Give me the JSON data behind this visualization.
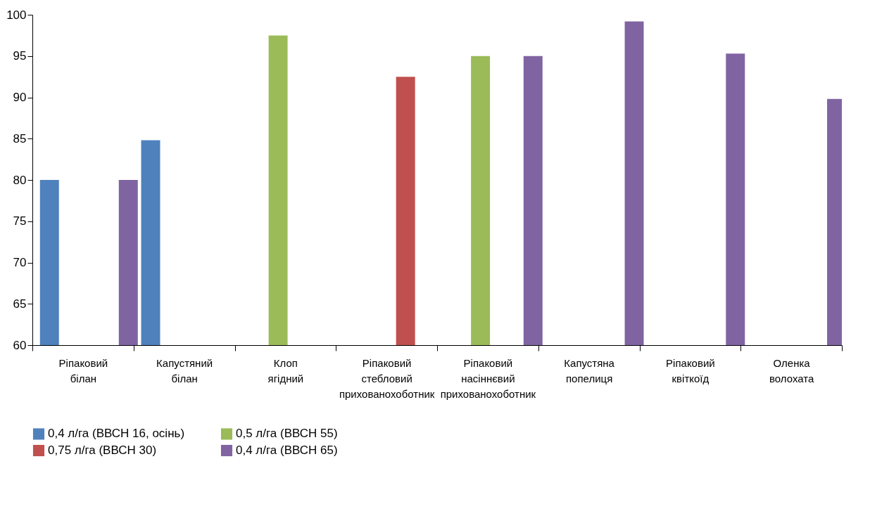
{
  "chart_data": {
    "type": "bar",
    "categories": [
      "Ріпаковий білан",
      "Капустяний білан",
      "Клоп ягідний",
      "Ріпаковий стебловий прихованохоботник",
      "Ріпаковий насіннєвий прихованохоботник",
      "Капустяна попелиця",
      "Ріпаковий квіткоїд",
      "Оленка волохата"
    ],
    "series": [
      {
        "name": "0,4 л/га (ВВСН 16, осінь)",
        "color": "#4f81bd",
        "values": [
          80,
          84.8,
          null,
          null,
          null,
          null,
          null,
          null
        ]
      },
      {
        "name": "0,5 л/га (ВВСН 55)",
        "color": "#9bbb59",
        "values": [
          null,
          null,
          97.5,
          null,
          95,
          null,
          null,
          null
        ]
      },
      {
        "name": "0,75 л/га (ВВСН 30)",
        "color": "#c0504d",
        "values": [
          null,
          null,
          null,
          92.5,
          null,
          null,
          null,
          null
        ]
      },
      {
        "name": "0,4 л/га (ВВСН 65)",
        "color": "#8064a2",
        "values": [
          80,
          null,
          null,
          null,
          95,
          99.2,
          95.3,
          89.8
        ]
      }
    ],
    "ylim": [
      60,
      100
    ],
    "yticks": [
      60,
      65,
      70,
      75,
      80,
      85,
      90,
      95,
      100
    ],
    "grid": false,
    "legend": "bottom"
  }
}
